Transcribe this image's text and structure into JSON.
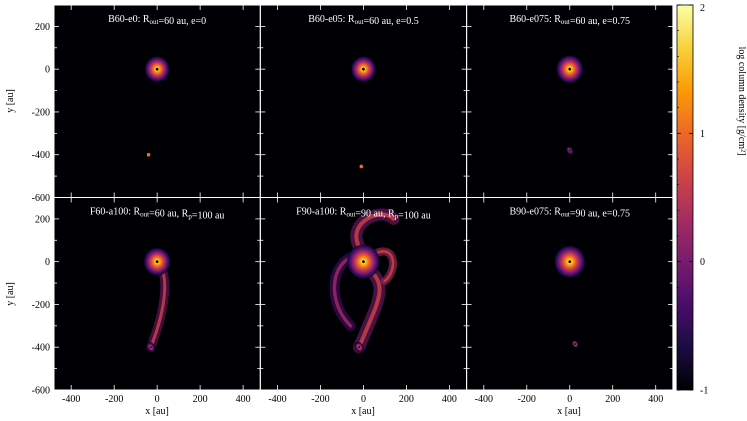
{
  "figure": {
    "colormap": [
      "#000004",
      "#1b0c41",
      "#4a0c6b",
      "#781c6d",
      "#a52c60",
      "#cf4446",
      "#ed6925",
      "#fb9b06",
      "#f7d13d",
      "#fcffa4"
    ],
    "frame_color": "#ffffff"
  },
  "chart_data": {
    "type": "heatmap",
    "xlabel": "x [au]",
    "ylabel": "y [au]",
    "xlim": [
      -480,
      480
    ],
    "ylim": [
      -600,
      300
    ],
    "xticks": [
      -400,
      -200,
      0,
      200,
      400
    ],
    "xtick_labels": [
      "-400",
      "-200",
      "0",
      "200",
      "400"
    ],
    "yticks": [
      -600,
      -400,
      -200,
      0,
      200
    ],
    "ytick_labels": [
      "-600",
      "-400",
      "-200",
      "0",
      "200"
    ],
    "colorbar": {
      "label": "log column density [g/cm²]",
      "range": [
        -1,
        2
      ],
      "ticks": [
        -1,
        0,
        1,
        2
      ],
      "tick_labels": [
        "-1",
        "0",
        "1",
        "2"
      ]
    },
    "panels": [
      {
        "id": "B60-e0",
        "title_pre": "B60-e0: R",
        "title_sub": "out",
        "title_post": "=60 au, e=0",
        "row": 0,
        "col": 0,
        "disc": {
          "x": 0,
          "y": 0,
          "r": 60,
          "log_peak": 2.0
        },
        "companion": {
          "x": -40,
          "y": -400,
          "r": 5,
          "log_peak": 1.0
        }
      },
      {
        "id": "B60-e05",
        "title_pre": "B60-e05: R",
        "title_sub": "out",
        "title_post": "=60 au, e=0.5",
        "row": 0,
        "col": 1,
        "disc": {
          "x": 0,
          "y": 0,
          "r": 60,
          "log_peak": 2.0
        },
        "companion": {
          "x": -10,
          "y": -455,
          "r": 4,
          "log_peak": 1.0
        }
      },
      {
        "id": "B60-e075",
        "title_pre": "B60-e075: R",
        "title_sub": "out",
        "title_post": "=60 au, e=0.75",
        "row": 0,
        "col": 2,
        "disc": {
          "x": 0,
          "y": 0,
          "r": 65,
          "log_peak": 2.0
        },
        "companion": {
          "x": 0,
          "y": -380,
          "r": 22,
          "log_peak": 1.0
        }
      },
      {
        "id": "F60-a100",
        "title_pre": "F60-a100: R",
        "title_sub": "out",
        "title_post": "=60 au, R",
        "title_sub2": "p",
        "title_post2": "=100 au",
        "row": 1,
        "col": 0,
        "disc": {
          "x": 0,
          "y": 0,
          "r": 65,
          "log_peak": 2.0
        },
        "companion": {
          "x": -30,
          "y": -400,
          "r": 28,
          "log_peak": 1.0
        }
      },
      {
        "id": "F90-a100",
        "title_pre": "F90-a100: R",
        "title_sub": "out",
        "title_post": "=90 au, R",
        "title_sub2": "p",
        "title_post2": "=100 au",
        "row": 1,
        "col": 1,
        "disc": {
          "x": 0,
          "y": 0,
          "r": 80,
          "log_peak": 2.0
        },
        "companion": {
          "x": -20,
          "y": -400,
          "r": 28,
          "log_peak": 1.2
        }
      },
      {
        "id": "B90-e075",
        "title_pre": "B90-e075: R",
        "title_sub": "out",
        "title_post": "=90 au, e=0.75",
        "row": 1,
        "col": 2,
        "disc": {
          "x": 0,
          "y": 0,
          "r": 75,
          "log_peak": 2.0
        },
        "companion": {
          "x": 25,
          "y": -385,
          "r": 20,
          "log_peak": 1.5
        }
      }
    ]
  }
}
